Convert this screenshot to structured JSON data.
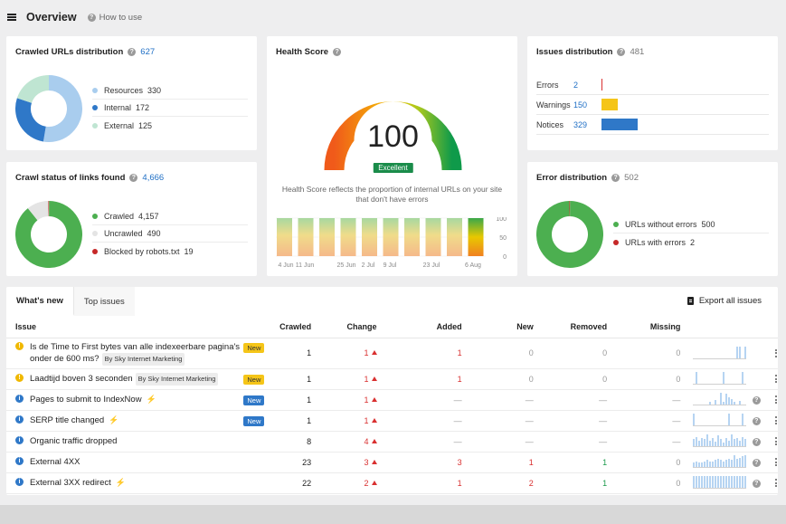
{
  "header": {
    "title": "Overview",
    "how_to_use": "How to use"
  },
  "crawled_urls": {
    "title": "Crawled URLs distribution",
    "count": "627",
    "items": [
      {
        "label": "Resources",
        "value": "330",
        "color": "#a9cdee"
      },
      {
        "label": "Internal",
        "value": "172",
        "color": "#2f78c8"
      },
      {
        "label": "External",
        "value": "125",
        "color": "#bfe5d2"
      }
    ]
  },
  "crawl_status": {
    "title": "Crawl status of links found",
    "count": "4,666",
    "items": [
      {
        "label": "Crawled",
        "value": "4,157",
        "color": "#4caf50"
      },
      {
        "label": "Uncrawled",
        "value": "490",
        "color": "#e4e4e4"
      },
      {
        "label": "Blocked by robots.txt",
        "value": "19",
        "color": "#c62828"
      }
    ]
  },
  "health": {
    "title": "Health Score",
    "score": "100",
    "badge": "Excellent",
    "description": "Health Score reflects the proportion of internal URLs on your site that don't have errors",
    "history": [
      100,
      100,
      100,
      100,
      100,
      100,
      100,
      100,
      100,
      100
    ],
    "x_labels": [
      "4 Jun",
      "11 Jun",
      "25 Jun",
      "2 Jul",
      "9 Jul",
      "23 Jul",
      "6 Aug"
    ],
    "y_labels": [
      "100",
      "50",
      "0"
    ]
  },
  "issues_distribution": {
    "title": "Issues distribution",
    "count": "481",
    "rows": [
      {
        "label": "Errors",
        "value": "2",
        "color": "#d93030",
        "share": 0.006
      },
      {
        "label": "Warnings",
        "value": "150",
        "color": "#f5c518",
        "share": 0.456
      },
      {
        "label": "Notices",
        "value": "329",
        "color": "#2f78c8",
        "share": 1.0
      }
    ]
  },
  "error_distribution": {
    "title": "Error distribution",
    "count": "502",
    "items": [
      {
        "label": "URLs without errors",
        "value": "500",
        "color": "#4caf50"
      },
      {
        "label": "URLs with errors",
        "value": "2",
        "color": "#c62828"
      }
    ]
  },
  "issues_table": {
    "tabs": [
      "What's new",
      "Top issues"
    ],
    "export_label": "Export all issues",
    "columns": [
      "Issue",
      "Crawled",
      "Change",
      "Added",
      "New",
      "Removed",
      "Missing"
    ],
    "rows": [
      {
        "type": "warning",
        "name": "Is de Time to First bytes van alle indexeerbare pagina's onder de 600 ms?",
        "tag": "By Sky Internet Marketing",
        "badge": "New",
        "badge_color": "yellow",
        "crawled": "1",
        "change": "1",
        "added": "1",
        "new": "0",
        "removed": "0",
        "missing": "0",
        "spark": [
          0,
          0,
          0,
          0,
          0,
          0,
          0,
          0,
          0,
          0,
          0,
          0,
          0,
          0,
          0,
          0,
          1,
          1,
          0,
          1
        ]
      },
      {
        "type": "warning",
        "name": "Laadtijd boven 3 seconden",
        "tag": "By Sky Internet Marketing",
        "badge": "New",
        "badge_color": "yellow",
        "crawled": "1",
        "change": "1",
        "added": "1",
        "new": "0",
        "removed": "0",
        "missing": "0",
        "spark": [
          0,
          1,
          0,
          0,
          0,
          0,
          0,
          0,
          0,
          0,
          0,
          1,
          0,
          0,
          0,
          0,
          0,
          0,
          1,
          0
        ]
      },
      {
        "type": "info",
        "name": "Pages to submit to IndexNow",
        "bolt": true,
        "badge": "New",
        "badge_color": "blue",
        "crawled": "1",
        "change": "1",
        "added": "—",
        "new": "—",
        "removed": "—",
        "missing": "—",
        "help": true,
        "spark": [
          0,
          0,
          0,
          0,
          0,
          0,
          0.2,
          0,
          0.4,
          0,
          1,
          0.2,
          0.9,
          0.6,
          0.5,
          0.2,
          0,
          0.3,
          0,
          0
        ]
      },
      {
        "type": "info",
        "name": "SERP title changed",
        "bolt": true,
        "badge": "New",
        "badge_color": "blue",
        "crawled": "1",
        "change": "1",
        "added": "—",
        "new": "—",
        "removed": "—",
        "missing": "—",
        "help": true,
        "spark": [
          1,
          0,
          0,
          0,
          0,
          0,
          0,
          0,
          0,
          0,
          0,
          0,
          0,
          1,
          0,
          0,
          0,
          0,
          1,
          0
        ]
      },
      {
        "type": "info",
        "name": "Organic traffic dropped",
        "crawled": "8",
        "change": "4",
        "added": "—",
        "new": "—",
        "removed": "—",
        "missing": "—",
        "help": true,
        "spark": [
          0.6,
          0.8,
          0.5,
          0.7,
          0.6,
          1,
          0.5,
          0.7,
          0.4,
          0.9,
          0.6,
          0.3,
          0.7,
          0.5,
          1,
          0.6,
          0.7,
          0.5,
          0.8,
          0.6
        ]
      },
      {
        "type": "info",
        "name": "External 4XX",
        "crawled": "23",
        "change": "3",
        "added": "3",
        "new": "1",
        "removed": "1",
        "missing": "0",
        "help": true,
        "spark": [
          0.4,
          0.5,
          0.4,
          0.4,
          0.5,
          0.6,
          0.5,
          0.5,
          0.6,
          0.7,
          0.6,
          0.5,
          0.6,
          0.7,
          0.6,
          1,
          0.7,
          0.8,
          0.9,
          1
        ]
      },
      {
        "type": "info",
        "name": "External 3XX redirect",
        "bolt": true,
        "crawled": "22",
        "change": "2",
        "added": "1",
        "new": "2",
        "removed": "1",
        "missing": "0",
        "help": true,
        "spark": [
          1,
          1,
          1,
          1,
          1,
          1,
          1,
          1,
          1,
          1,
          1,
          1,
          1,
          1,
          1,
          1,
          1,
          1,
          1,
          1
        ]
      }
    ]
  }
}
